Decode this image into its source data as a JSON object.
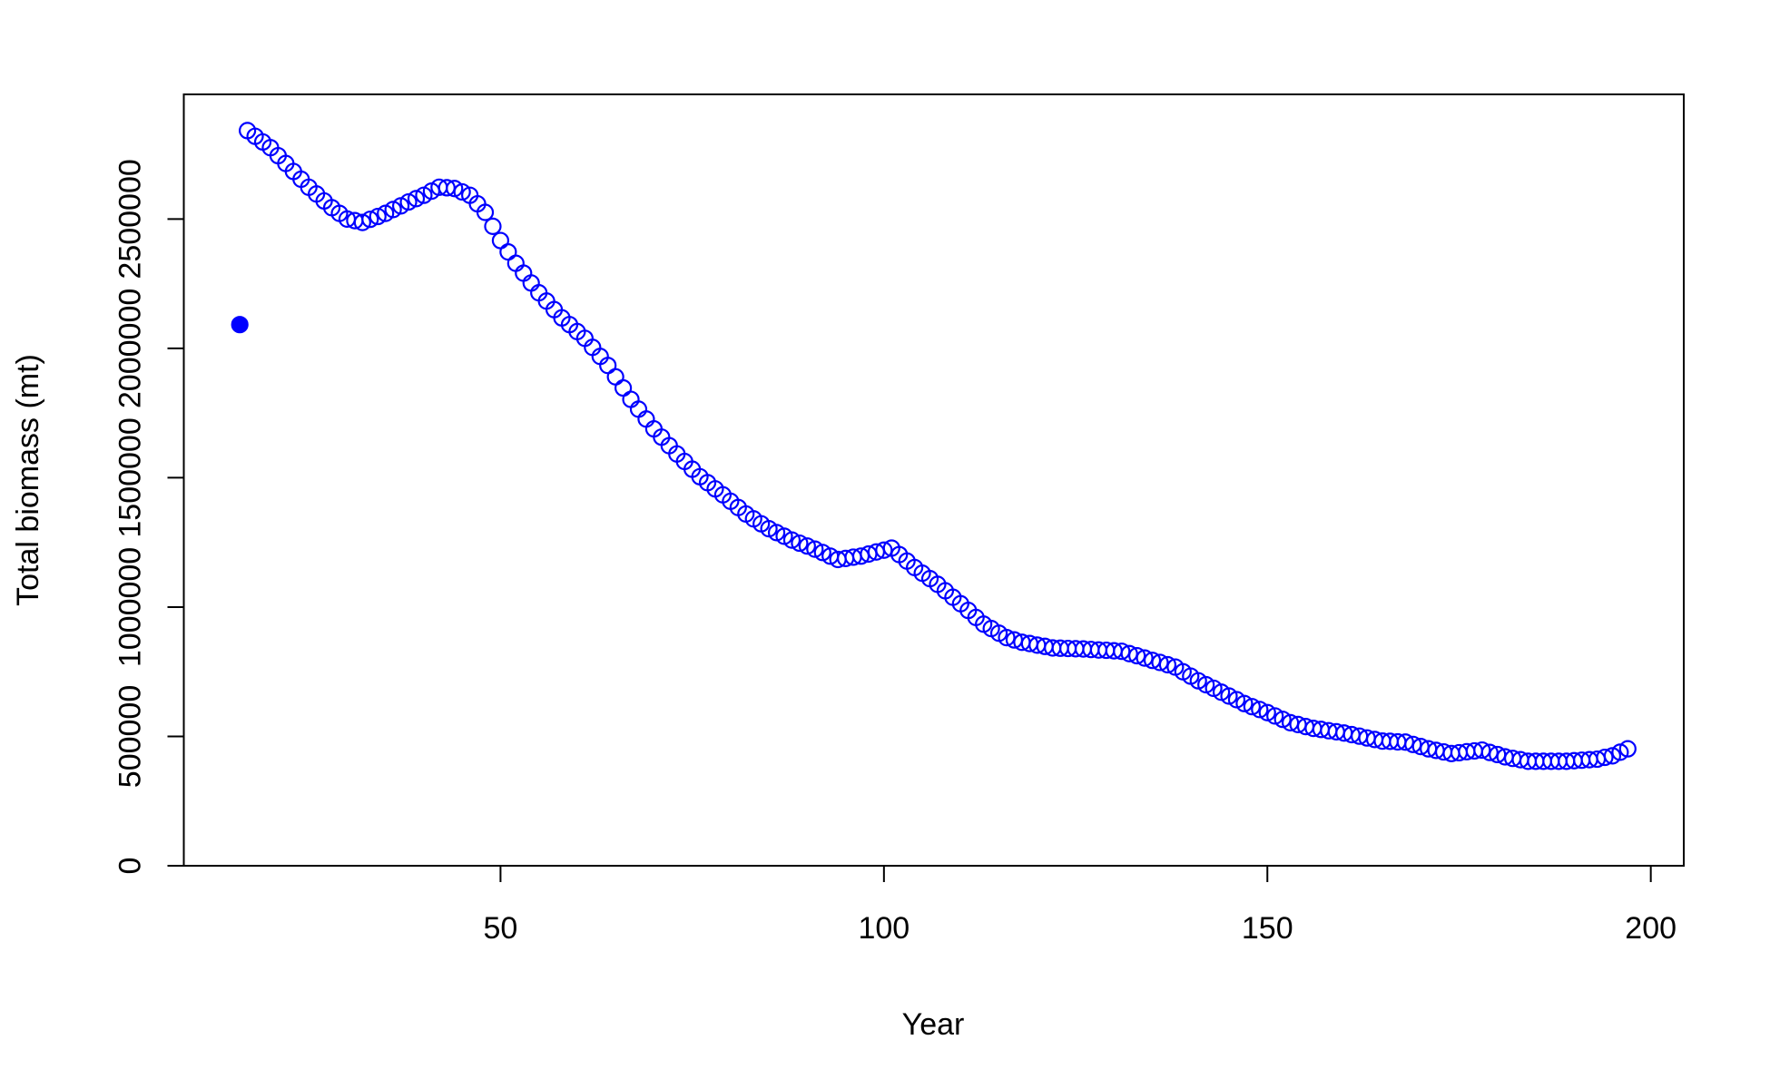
{
  "chart_data": {
    "type": "scatter",
    "x_label": "Year",
    "y_label": "Total biomass (mt)",
    "xlim": [
      8.7,
      204.3
    ],
    "ylim": [
      0,
      2982000
    ],
    "xticks": [
      50,
      100,
      150,
      200
    ],
    "yticks": [
      0,
      500000,
      1000000,
      1500000,
      2000000,
      2500000
    ],
    "series": [
      {
        "color": "#0000ff",
        "filled": true,
        "x": [
          16
        ],
        "values": [
          2092000
        ]
      },
      {
        "color": "#0000ff",
        "filled": false,
        "x": [
          17,
          18,
          19,
          20,
          21,
          22,
          23,
          24,
          25,
          26,
          27,
          28,
          29,
          30,
          31,
          32,
          33,
          34,
          35,
          36,
          37,
          38,
          39,
          40,
          41,
          42,
          43,
          44,
          45,
          46,
          47,
          48,
          49,
          50,
          51,
          52,
          53,
          54,
          55,
          56,
          57,
          58,
          59,
          60,
          61,
          62,
          63,
          64,
          65,
          66,
          67,
          68,
          69,
          70,
          71,
          72,
          73,
          74,
          75,
          76,
          77,
          78,
          79,
          80,
          81,
          82,
          83,
          84,
          85,
          86,
          87,
          88,
          89,
          90,
          91,
          92,
          93,
          94,
          95,
          96,
          97,
          98,
          99,
          100,
          101,
          102,
          103,
          104,
          105,
          106,
          107,
          108,
          109,
          110,
          111,
          112,
          113,
          114,
          115,
          116,
          117,
          118,
          119,
          120,
          121,
          122,
          123,
          124,
          125,
          126,
          127,
          128,
          129,
          130,
          131,
          132,
          133,
          134,
          135,
          136,
          137,
          138,
          139,
          140,
          141,
          142,
          143,
          144,
          145,
          146,
          147,
          148,
          149,
          150,
          151,
          152,
          153,
          154,
          155,
          156,
          157,
          158,
          159,
          160,
          161,
          162,
          163,
          164,
          165,
          166,
          167,
          168,
          169,
          170,
          171,
          172,
          173,
          174,
          175,
          176,
          177,
          178,
          179,
          180,
          181,
          182,
          183,
          184,
          185,
          186,
          187,
          188,
          189,
          190,
          191,
          192,
          193,
          194,
          195,
          196,
          197
        ],
        "values": [
          2842000,
          2820000,
          2798000,
          2776000,
          2745000,
          2715000,
          2684000,
          2654000,
          2623000,
          2597000,
          2570000,
          2544000,
          2522000,
          2500000,
          2494000,
          2487000,
          2499000,
          2510000,
          2522000,
          2537000,
          2551000,
          2566000,
          2579000,
          2592000,
          2608000,
          2623000,
          2621000,
          2618000,
          2605000,
          2592000,
          2559000,
          2526000,
          2472000,
          2417000,
          2373000,
          2329000,
          2291000,
          2253000,
          2215000,
          2183000,
          2150000,
          2118000,
          2092000,
          2065000,
          2039000,
          2004000,
          1969000,
          1934000,
          1890000,
          1847000,
          1803000,
          1765000,
          1727000,
          1689000,
          1657000,
          1624000,
          1592000,
          1563000,
          1533000,
          1504000,
          1481000,
          1457000,
          1434000,
          1409000,
          1385000,
          1360000,
          1341000,
          1322000,
          1303000,
          1288000,
          1274000,
          1259000,
          1247000,
          1236000,
          1224000,
          1211000,
          1197000,
          1184000,
          1188000,
          1193000,
          1197000,
          1205000,
          1213000,
          1220000,
          1228000,
          1203000,
          1178000,
          1153000,
          1131000,
          1110000,
          1088000,
          1063000,
          1038000,
          1013000,
          987000,
          960000,
          934000,
          917000,
          899000,
          882000,
          873000,
          864000,
          859000,
          853000,
          848000,
          842000,
          841000,
          840000,
          839000,
          838000,
          836000,
          834000,
          833000,
          831000,
          829000,
          820000,
          812000,
          803000,
          794000,
          786000,
          777000,
          768000,
          750000,
          733000,
          715000,
          700000,
          686000,
          671000,
          656000,
          642000,
          627000,
          615000,
          604000,
          592000,
          579000,
          566000,
          553000,
          546000,
          538000,
          531000,
          527000,
          522000,
          518000,
          513000,
          507000,
          501000,
          494000,
          488000,
          482000,
          481000,
          479000,
          478000,
          469000,
          461000,
          452000,
          446000,
          440000,
          434000,
          437000,
          441000,
          444000,
          447000,
          438000,
          430000,
          421000,
          415000,
          410000,
          404000,
          404000,
          404000,
          404000,
          404000,
          404000,
          406000,
          408000,
          410000,
          412000,
          419000,
          425000,
          439000,
          452000
        ]
      }
    ]
  }
}
